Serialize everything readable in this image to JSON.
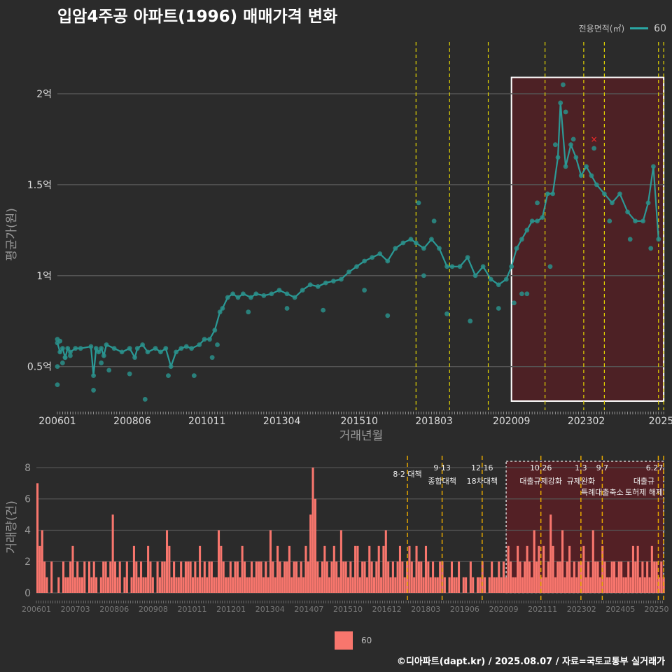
{
  "title": "입암4주공 아파트(1996) 매매가격 변화",
  "legend": {
    "title": "전용면적(㎡)",
    "label": "60",
    "line_color": "#2aa6a3",
    "bar_color": "#f8766d"
  },
  "footer": "©디아파트(dapt.kr) / 2025.08.07 / 자료=국토교통부 실거래가",
  "chart_data": [
    {
      "type": "line",
      "title": "입암4주공 아파트(1996) 매매가격 변화",
      "xlabel": "거래년월",
      "ylabel": "평균가(원)",
      "x_tick_labels": [
        "200601",
        "200806",
        "201011",
        "201304",
        "201510",
        "201803",
        "202009",
        "202302",
        "2025"
      ],
      "y_tick_labels": [
        "0.5억",
        "1억",
        "1.5억",
        "2억"
      ],
      "y_ticks": [
        0.5,
        1.0,
        1.5,
        2.0
      ],
      "ylim": [
        0.26,
        2.2
      ],
      "y_unit": "억",
      "series": [
        {
          "name": "60",
          "points": [
            [
              "2006-01",
              0.63
            ],
            [
              "2006-02",
              0.58
            ],
            [
              "2006-03",
              0.6
            ],
            [
              "2006-04",
              0.55
            ],
            [
              "2006-05",
              0.6
            ],
            [
              "2006-06",
              0.58
            ],
            [
              "2006-08",
              0.6
            ],
            [
              "2006-10",
              0.6
            ],
            [
              "2007-02",
              0.61
            ],
            [
              "2007-03",
              0.45
            ],
            [
              "2007-04",
              0.6
            ],
            [
              "2007-05",
              0.58
            ],
            [
              "2007-06",
              0.6
            ],
            [
              "2007-07",
              0.56
            ],
            [
              "2007-08",
              0.62
            ],
            [
              "2007-11",
              0.6
            ],
            [
              "2008-02",
              0.58
            ],
            [
              "2008-05",
              0.6
            ],
            [
              "2008-07",
              0.55
            ],
            [
              "2008-08",
              0.6
            ],
            [
              "2008-10",
              0.62
            ],
            [
              "2008-12",
              0.58
            ],
            [
              "2009-03",
              0.6
            ],
            [
              "2009-05",
              0.58
            ],
            [
              "2009-07",
              0.6
            ],
            [
              "2009-09",
              0.5
            ],
            [
              "2009-11",
              0.58
            ],
            [
              "2010-01",
              0.6
            ],
            [
              "2010-03",
              0.61
            ],
            [
              "2010-05",
              0.6
            ],
            [
              "2010-08",
              0.62
            ],
            [
              "2010-10",
              0.65
            ],
            [
              "2010-12",
              0.65
            ],
            [
              "2011-02",
              0.7
            ],
            [
              "2011-04",
              0.8
            ],
            [
              "2011-05",
              0.82
            ],
            [
              "2011-07",
              0.88
            ],
            [
              "2011-09",
              0.9
            ],
            [
              "2011-11",
              0.88
            ],
            [
              "2012-01",
              0.9
            ],
            [
              "2012-04",
              0.88
            ],
            [
              "2012-06",
              0.9
            ],
            [
              "2012-09",
              0.89
            ],
            [
              "2012-12",
              0.9
            ],
            [
              "2013-03",
              0.92
            ],
            [
              "2013-06",
              0.9
            ],
            [
              "2013-09",
              0.88
            ],
            [
              "2013-12",
              0.92
            ],
            [
              "2014-03",
              0.95
            ],
            [
              "2014-06",
              0.94
            ],
            [
              "2014-09",
              0.96
            ],
            [
              "2014-12",
              0.97
            ],
            [
              "2015-03",
              0.98
            ],
            [
              "2015-06",
              1.02
            ],
            [
              "2015-09",
              1.05
            ],
            [
              "2015-12",
              1.08
            ],
            [
              "2016-03",
              1.1
            ],
            [
              "2016-06",
              1.12
            ],
            [
              "2016-09",
              1.08
            ],
            [
              "2016-12",
              1.15
            ],
            [
              "2017-03",
              1.18
            ],
            [
              "2017-06",
              1.2
            ],
            [
              "2017-08",
              1.18
            ],
            [
              "2017-11",
              1.15
            ],
            [
              "2018-02",
              1.2
            ],
            [
              "2018-05",
              1.15
            ],
            [
              "2018-08",
              1.05
            ],
            [
              "2018-10",
              1.05
            ],
            [
              "2019-01",
              1.05
            ],
            [
              "2019-04",
              1.1
            ],
            [
              "2019-07",
              1.0
            ],
            [
              "2019-10",
              1.05
            ],
            [
              "2020-01",
              0.98
            ],
            [
              "2020-04",
              0.95
            ],
            [
              "2020-07",
              0.98
            ],
            [
              "2020-09",
              1.05
            ],
            [
              "2020-11",
              1.15
            ],
            [
              "2021-01",
              1.2
            ],
            [
              "2021-03",
              1.25
            ],
            [
              "2021-05",
              1.3
            ],
            [
              "2021-07",
              1.3
            ],
            [
              "2021-09",
              1.32
            ],
            [
              "2021-11",
              1.45
            ],
            [
              "2022-01",
              1.45
            ],
            [
              "2022-03",
              1.65
            ],
            [
              "2022-04",
              1.95
            ],
            [
              "2022-06",
              1.6
            ],
            [
              "2022-08",
              1.72
            ],
            [
              "2022-10",
              1.65
            ],
            [
              "2022-12",
              1.55
            ],
            [
              "2023-02",
              1.6
            ],
            [
              "2023-04",
              1.55
            ],
            [
              "2023-06",
              1.5
            ],
            [
              "2023-09",
              1.45
            ],
            [
              "2023-12",
              1.4
            ],
            [
              "2024-03",
              1.45
            ],
            [
              "2024-06",
              1.35
            ],
            [
              "2024-09",
              1.3
            ],
            [
              "2024-12",
              1.3
            ],
            [
              "2025-02",
              1.4
            ],
            [
              "2025-04",
              1.6
            ],
            [
              "2025-06",
              1.2
            ]
          ]
        }
      ],
      "scatter_points": [
        [
          "2006-01",
          0.65
        ],
        [
          "2006-01",
          0.5
        ],
        [
          "2006-01",
          0.4
        ],
        [
          "2006-02",
          0.64
        ],
        [
          "2006-03",
          0.52
        ],
        [
          "2006-04",
          0.55
        ],
        [
          "2006-06",
          0.56
        ],
        [
          "2007-03",
          0.37
        ],
        [
          "2007-06",
          0.52
        ],
        [
          "2007-09",
          0.48
        ],
        [
          "2008-05",
          0.46
        ],
        [
          "2008-11",
          0.32
        ],
        [
          "2009-08",
          0.45
        ],
        [
          "2010-06",
          0.45
        ],
        [
          "2011-01",
          0.55
        ],
        [
          "2011-03",
          0.62
        ],
        [
          "2012-03",
          0.8
        ],
        [
          "2013-06",
          0.82
        ],
        [
          "2014-08",
          0.81
        ],
        [
          "2015-12",
          0.92
        ],
        [
          "2016-09",
          0.78
        ],
        [
          "2017-09",
          1.4
        ],
        [
          "2017-11",
          1.0
        ],
        [
          "2018-03",
          1.3
        ],
        [
          "2018-08",
          0.79
        ],
        [
          "2019-05",
          0.75
        ],
        [
          "2020-04",
          0.82
        ],
        [
          "2020-10",
          0.85
        ],
        [
          "2021-01",
          0.9
        ],
        [
          "2021-03",
          0.9
        ],
        [
          "2021-07",
          1.4
        ],
        [
          "2021-12",
          1.05
        ],
        [
          "2022-02",
          1.72
        ],
        [
          "2022-05",
          2.05
        ],
        [
          "2022-06",
          1.9
        ],
        [
          "2022-09",
          1.75
        ],
        [
          "2023-05",
          1.7
        ],
        [
          "2023-11",
          1.3
        ],
        [
          "2024-07",
          1.2
        ],
        [
          "2025-03",
          1.15
        ]
      ],
      "outlier_marker": [
        "2023-05",
        1.75
      ],
      "highlight_box": {
        "from": "2020-09",
        "to": "2025-08",
        "y_from": 0.31,
        "y_to": 2.09
      },
      "policy_lines": [
        "2017-08",
        "2018-09",
        "2019-12",
        "2021-10",
        "2023-01",
        "2023-09",
        "2025-06",
        "2025-08"
      ]
    },
    {
      "type": "bar",
      "xlabel": "",
      "ylabel": "거래량(건)",
      "x_tick_labels": [
        "200601",
        "200703",
        "200806",
        "200908",
        "201011",
        "201201",
        "201304",
        "201407",
        "201510",
        "201612",
        "201803",
        "201906",
        "202009",
        "202111",
        "202302",
        "202405",
        "20250"
      ],
      "y_ticks": [
        0,
        2,
        4,
        6,
        8
      ],
      "ylim": [
        0,
        8.4
      ],
      "series_name": "60",
      "values": [
        7,
        3,
        4,
        2,
        1,
        0,
        2,
        0,
        0,
        1,
        0,
        2,
        1,
        1,
        2,
        3,
        1,
        2,
        1,
        1,
        2,
        0,
        2,
        1,
        2,
        1,
        0,
        1,
        2,
        2,
        1,
        2,
        5,
        2,
        1,
        2,
        0,
        1,
        2,
        0,
        1,
        3,
        2,
        1,
        2,
        1,
        1,
        3,
        2,
        1,
        0,
        2,
        1,
        2,
        2,
        4,
        3,
        1,
        2,
        1,
        1,
        2,
        1,
        2,
        2,
        2,
        1,
        2,
        1,
        3,
        1,
        2,
        1,
        2,
        2,
        1,
        1,
        4,
        3,
        2,
        1,
        1,
        2,
        1,
        2,
        2,
        1,
        3,
        2,
        1,
        1,
        2,
        1,
        2,
        2,
        2,
        1,
        2,
        1,
        4,
        2,
        1,
        3,
        2,
        1,
        2,
        2,
        3,
        1,
        2,
        2,
        1,
        2,
        1,
        3,
        2,
        5,
        8,
        6,
        2,
        1,
        2,
        3,
        2,
        1,
        2,
        3,
        2,
        1,
        4,
        2,
        2,
        1,
        2,
        1,
        3,
        3,
        1,
        2,
        2,
        1,
        3,
        2,
        1,
        2,
        3,
        1,
        3,
        4,
        2,
        1,
        2,
        1,
        2,
        3,
        2,
        1,
        2,
        3,
        2,
        1,
        3,
        2,
        2,
        1,
        3,
        2,
        1,
        2,
        1,
        1,
        2,
        2,
        1,
        0,
        1,
        2,
        1,
        1,
        2,
        0,
        1,
        1,
        0,
        2,
        1,
        0,
        1,
        1,
        2,
        1,
        0,
        1,
        2,
        1,
        1,
        2,
        1,
        2,
        1,
        3,
        2,
        1,
        1,
        3,
        2,
        1,
        2,
        3,
        2,
        1,
        4,
        2,
        3,
        1,
        3,
        1,
        2,
        5,
        3,
        1,
        2,
        2,
        4,
        1,
        2,
        3,
        1,
        2,
        1,
        2,
        2,
        3,
        1,
        2,
        1,
        4,
        2,
        2,
        1,
        3,
        2,
        1,
        1,
        2,
        2,
        1,
        2,
        2,
        1,
        1,
        2,
        1,
        3,
        2,
        3,
        1,
        2,
        1,
        2,
        1,
        3,
        2,
        2,
        1,
        2,
        1
      ],
      "policy_annotations": [
        {
          "date": "2017-08",
          "line1": "8·2 대책",
          "line2": ""
        },
        {
          "date": "2018-09",
          "line1": "9·13",
          "line2": "종합대책"
        },
        {
          "date": "2019-12",
          "line1": "12·16",
          "line2": "18차대책"
        },
        {
          "date": "2021-10",
          "line1": "10.26",
          "line2": "대출규제강화"
        },
        {
          "date": "2023-01",
          "line1": "1.3",
          "line2": "규제완화"
        },
        {
          "date": "2023-09",
          "line1": "9.7",
          "line2": "특례대출축소"
        },
        {
          "date": "2025-06",
          "line1": "6.27",
          "line2": "대출규"
        },
        {
          "date": "2025-08",
          "line1": "",
          "line2": "토허제 해제"
        }
      ]
    }
  ]
}
